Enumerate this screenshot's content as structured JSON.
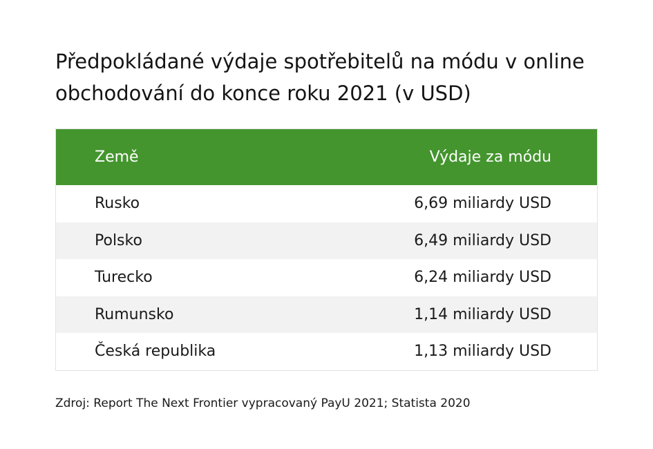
{
  "title": "Předpokládané výdaje spotřebitelů na módu v online obchodování do konce roku 2021 (v USD)",
  "table": {
    "headers": [
      "Země",
      "Výdaje za módu"
    ],
    "rows": [
      {
        "country": "Rusko",
        "value": "6,69 miliardy USD"
      },
      {
        "country": "Polsko",
        "value": "6,49 miliardy USD"
      },
      {
        "country": "Turecko",
        "value": "6,24 miliardy USD"
      },
      {
        "country": "Rumunsko",
        "value": "1,14 miliardy USD"
      },
      {
        "country": "Česká republika",
        "value": "1,13 miliardy USD"
      }
    ]
  },
  "source": "Zdroj: Report The Next Frontier vypracovaný PayU 2021; Statista 2020",
  "colors": {
    "header_bg": "#44952e",
    "row_alt_bg": "#f2f2f2",
    "text": "#1a1a1a"
  }
}
